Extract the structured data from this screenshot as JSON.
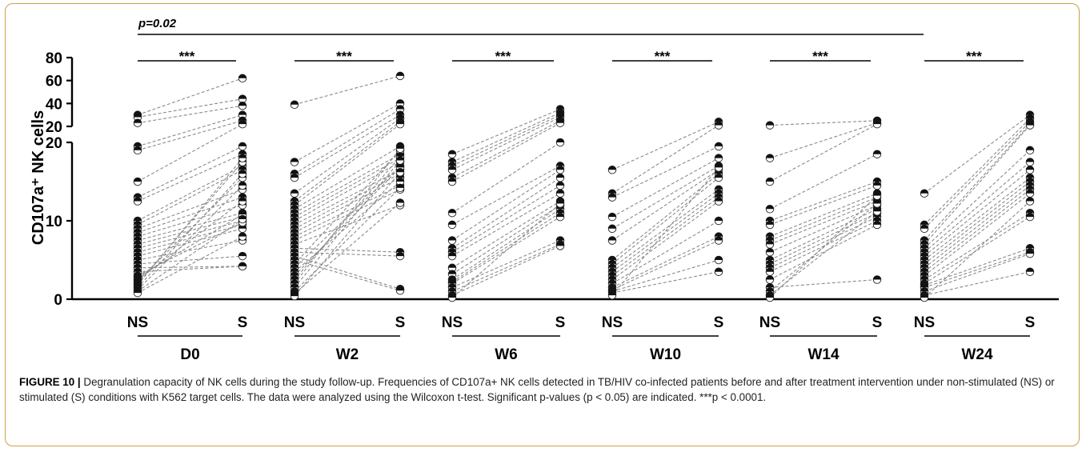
{
  "chart_data": {
    "type": "scatter",
    "ylabel": "CD107a⁺ NK cells",
    "y_axis": {
      "type": "broken",
      "lower_range": [
        0,
        20
      ],
      "upper_range": [
        20,
        80
      ],
      "lower_ticks": [
        "0",
        "10",
        "20"
      ],
      "upper_ticks": [
        "20",
        "40",
        "60",
        "80"
      ]
    },
    "x_tick_labels": [
      "NS",
      "S"
    ],
    "groups": [
      {
        "name": "D0",
        "sig": "***",
        "ns": [
          30,
          28,
          23,
          19.5,
          19,
          15,
          13,
          12.5,
          10,
          9.5,
          9,
          8.5,
          8,
          7.5,
          7,
          6.5,
          6,
          5.5,
          5,
          4.5,
          4,
          3.5,
          3,
          2.8,
          2.5,
          2.3,
          2,
          1.8,
          1.5,
          1.2,
          1,
          0.8
        ],
        "s": [
          62,
          44,
          38,
          30,
          25,
          22,
          19.5,
          18.5,
          17,
          16.5,
          14,
          13,
          12,
          11,
          10.5,
          10,
          9.5,
          9,
          7.5,
          5.5,
          4.2,
          4.2,
          9.8,
          10.8,
          12.5,
          15.5,
          17.5,
          18,
          16,
          14.5,
          10.2,
          8
        ]
      },
      {
        "name": "W2",
        "sig": "***",
        "ns": [
          39,
          17.5,
          16,
          15.5,
          13.5,
          12.5,
          12,
          11.5,
          11,
          10.5,
          10,
          9.5,
          9,
          8.5,
          8,
          7.5,
          7,
          6.5,
          6,
          5.5,
          5,
          4.5,
          4,
          3.5,
          3,
          2.5,
          2,
          1.5,
          1,
          0.7,
          0.4
        ],
        "s": [
          64,
          40,
          35,
          30,
          27,
          24,
          22,
          19.5,
          18.5,
          18,
          17.5,
          16.5,
          16,
          15.5,
          14.5,
          14,
          12,
          6,
          5.5,
          1.3,
          1.1,
          19,
          17,
          15,
          16.8,
          18.2,
          19.2,
          17.7,
          14.2,
          12.3,
          16.2
        ]
      },
      {
        "name": "W6",
        "sig": "***",
        "ns": [
          18.5,
          17.5,
          17,
          16.5,
          15.5,
          15,
          11,
          9.5,
          7.5,
          6.5,
          6,
          5.5,
          4,
          3.2,
          2.5,
          2.2,
          2,
          1.5,
          1,
          0.5,
          0.2
        ],
        "s": [
          35,
          32,
          30,
          28,
          25,
          23,
          20,
          17,
          16.5,
          15.5,
          14.5,
          13.5,
          12.5,
          12,
          11.5,
          11,
          10.5,
          7.5,
          7,
          6.8,
          12.2
        ]
      },
      {
        "name": "W10",
        "sig": "***",
        "ns": [
          16.5,
          13.5,
          13,
          10.5,
          9,
          7.5,
          5,
          4.5,
          4,
          3.5,
          3,
          2.5,
          2,
          1.5,
          1.2,
          1,
          0.8,
          0.5
        ],
        "s": [
          24,
          21,
          19.5,
          18,
          17,
          16.5,
          16,
          15.5,
          14,
          13.5,
          13,
          12.5,
          10,
          8,
          7.5,
          5,
          3.5,
          16.8
        ]
      },
      {
        "name": "W14",
        "sig": "***",
        "ns": [
          21,
          18,
          15,
          11.5,
          10,
          9.5,
          8,
          7.5,
          7,
          6,
          5,
          4.5,
          4,
          3.5,
          2.5,
          1.5,
          1,
          0.5,
          0.2
        ],
        "s": [
          25,
          23,
          22,
          18.5,
          15,
          14.5,
          13.5,
          13,
          12.5,
          12,
          11.5,
          11,
          10.5,
          10,
          9.5,
          2.5,
          12.2,
          11.2,
          13.2
        ]
      },
      {
        "name": "W24",
        "sig": "***",
        "ns": [
          13.5,
          9.5,
          9,
          7.5,
          7,
          6.5,
          6,
          5.5,
          5,
          4.5,
          4,
          3.5,
          3,
          2.5,
          2,
          1.8,
          1.5,
          1,
          0.5,
          0.2
        ],
        "s": [
          30,
          27,
          24,
          22,
          21,
          19,
          17.5,
          16.5,
          15.5,
          15,
          14.5,
          14,
          13.5,
          11,
          10.5,
          6.5,
          6,
          5.8,
          3.5,
          12.5
        ]
      }
    ],
    "overall_comparison": {
      "label": "p=0.02",
      "from": "D0",
      "to": "W24"
    },
    "colors": {
      "axis": "#000000",
      "line": "#8a8a8a",
      "marker_fill": "#111111",
      "marker_light": "#ffffff",
      "frame": "#c9a14a"
    }
  },
  "caption": {
    "label": "FIGURE 10 |",
    "text": " Degranulation capacity of NK cells during the study follow-up. Frequencies of CD107a+ NK cells detected in TB/HIV co-infected patients before and after treatment intervention under non-stimulated (NS) or stimulated (S) conditions with K562 target cells. The data were analyzed using the Wilcoxon t-test. Significant p-values (p < 0.05) are indicated. ***p < 0.0001."
  }
}
